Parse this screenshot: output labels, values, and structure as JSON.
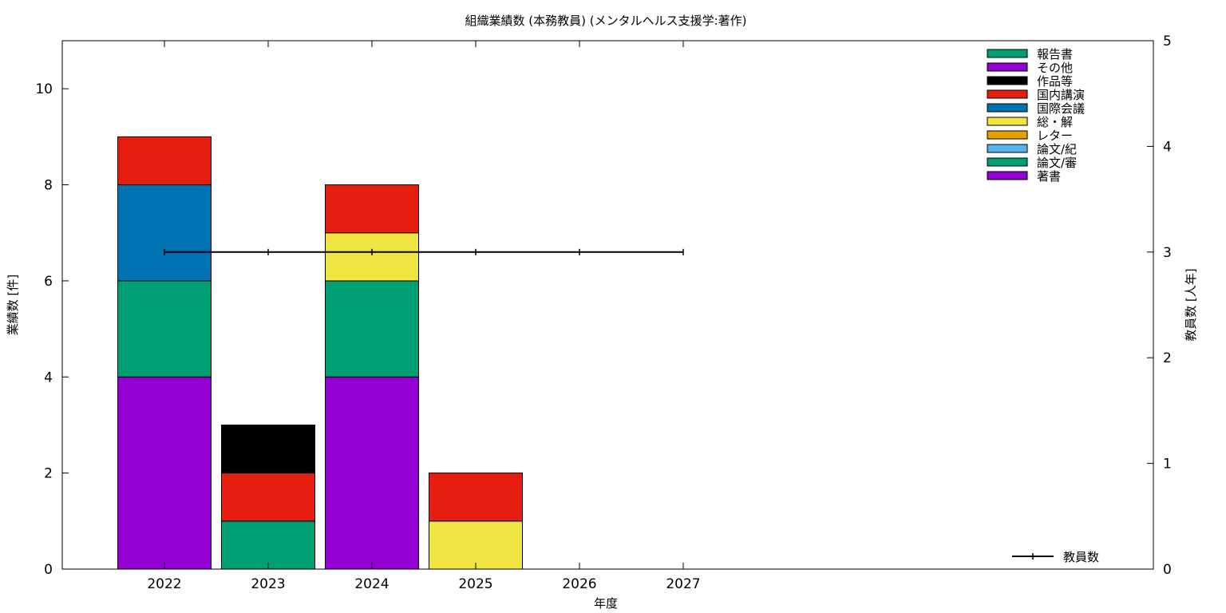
{
  "chart_data": {
    "type": "bar",
    "stacked": true,
    "title": "組織業績数 (本務教員) (メンタルヘルス支援学:著作)",
    "xlabel": "年度",
    "ylabel": "業績数 [件]",
    "y2label": "教員数 [人年]",
    "ylim": [
      0,
      11
    ],
    "y2lim": [
      0,
      5
    ],
    "categories": [
      "2022",
      "2023",
      "2024",
      "2025",
      "2026",
      "2027"
    ],
    "yticks": [
      "0",
      "2",
      "4",
      "6",
      "8",
      "10"
    ],
    "y2ticks": [
      "0",
      "1",
      "2",
      "3",
      "4",
      "5"
    ],
    "legend_position": "top-right",
    "series": [
      {
        "name": "著書",
        "color": "#9400d3",
        "values": [
          4,
          0,
          4,
          0,
          0,
          0
        ]
      },
      {
        "name": "論文/審",
        "color": "#009e73",
        "values": [
          2,
          1,
          2,
          0,
          0,
          0
        ]
      },
      {
        "name": "論文/紀",
        "color": "#56b4e9",
        "values": [
          0,
          0,
          0,
          0,
          0,
          0
        ]
      },
      {
        "name": "レター",
        "color": "#e69f00",
        "values": [
          0,
          0,
          0,
          0,
          0,
          0
        ]
      },
      {
        "name": "総・解",
        "color": "#f0e442",
        "values": [
          0,
          0,
          1,
          1,
          0,
          0
        ]
      },
      {
        "name": "国際会議",
        "color": "#0072b2",
        "values": [
          2,
          0,
          0,
          0,
          0,
          0
        ]
      },
      {
        "name": "国内講演",
        "color": "#e51e10",
        "values": [
          1,
          1,
          1,
          1,
          0,
          0
        ]
      },
      {
        "name": "作品等",
        "color": "#000000",
        "values": [
          0,
          1,
          0,
          0,
          0,
          0
        ]
      },
      {
        "name": "その他",
        "color": "#9400d3",
        "values": [
          0,
          0,
          0,
          0,
          0,
          0
        ]
      },
      {
        "name": "報告書",
        "color": "#009e73",
        "values": [
          0,
          0,
          0,
          0,
          0,
          0
        ]
      }
    ],
    "line_series": {
      "name": "教員数",
      "axis": "y2",
      "color": "#000000",
      "values": [
        3,
        3,
        3,
        3,
        3,
        3
      ]
    }
  }
}
